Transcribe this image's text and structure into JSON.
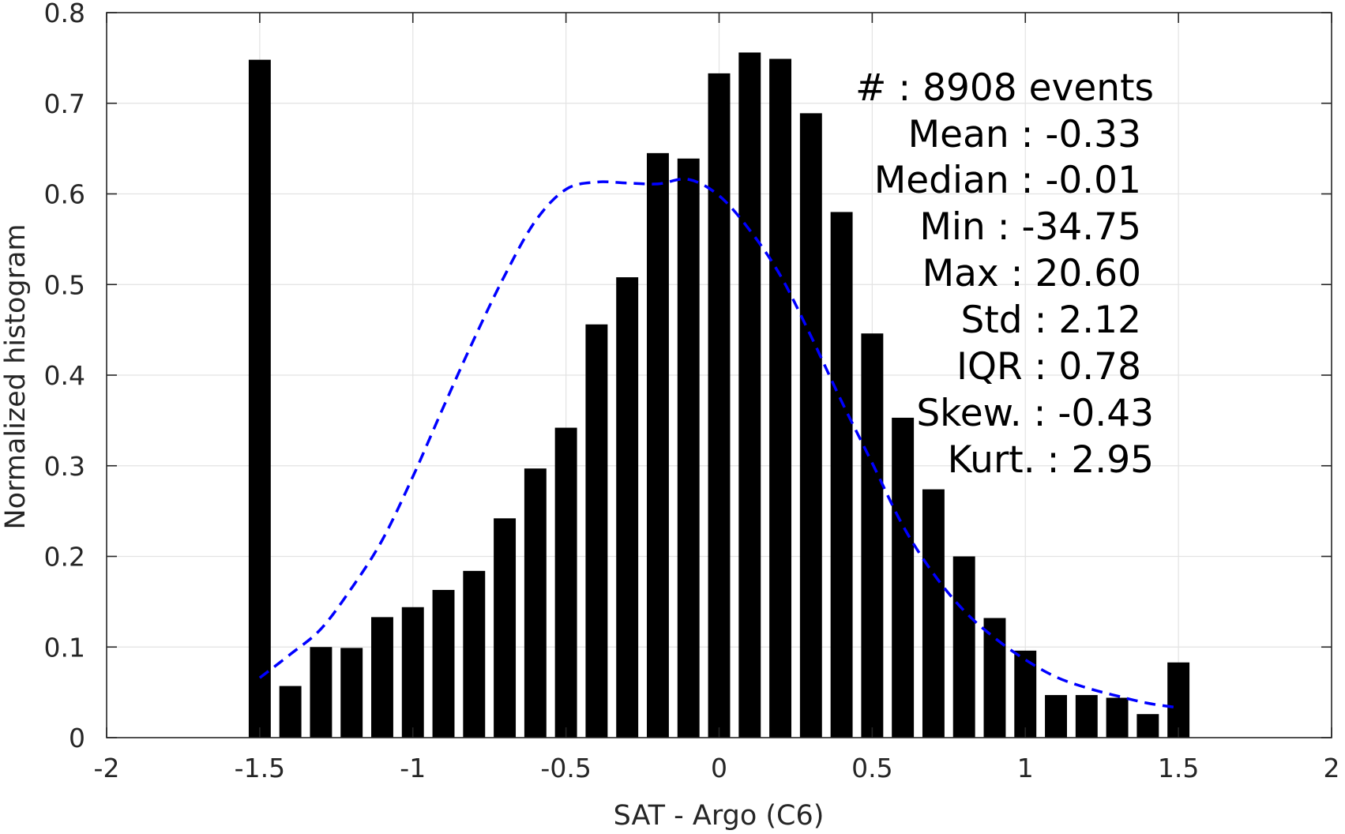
{
  "chart_data": {
    "type": "bar",
    "xlabel": "SAT - Argo (C6)",
    "ylabel": "Normalized histogram",
    "xlim": [
      -2,
      2
    ],
    "ylim": [
      0,
      0.8
    ],
    "grid": true,
    "x_ticks": [
      "-2",
      "-1.5",
      "-1",
      "-0.5",
      "0",
      "0.5",
      "1",
      "1.5",
      "2"
    ],
    "y_ticks": [
      "0",
      "0.1",
      "0.2",
      "0.3",
      "0.4",
      "0.5",
      "0.6",
      "0.7",
      "0.8"
    ],
    "bar_color": "#000000",
    "fit_color": "#0000ff",
    "bins": [
      -1.5,
      -1.4,
      -1.3,
      -1.2,
      -1.1,
      -1.0,
      -0.9,
      -0.8,
      -0.7,
      -0.6,
      -0.5,
      -0.4,
      -0.3,
      -0.2,
      -0.1,
      0.0,
      0.1,
      0.2,
      0.3,
      0.4,
      0.5,
      0.6,
      0.7,
      0.8,
      0.9,
      1.0,
      1.1,
      1.2,
      1.3,
      1.4,
      1.5
    ],
    "values": [
      0.748,
      0.057,
      0.1,
      0.099,
      0.133,
      0.144,
      0.163,
      0.184,
      0.242,
      0.297,
      0.342,
      0.456,
      0.508,
      0.645,
      0.639,
      0.733,
      0.756,
      0.749,
      0.689,
      0.58,
      0.446,
      0.353,
      0.274,
      0.2,
      0.132,
      0.096,
      0.047,
      0.047,
      0.044,
      0.026,
      0.083
    ],
    "fit_curve": {
      "style": "dashed",
      "x": [
        -1.5,
        -1.4,
        -1.3,
        -1.2,
        -1.1,
        -1.0,
        -0.9,
        -0.8,
        -0.7,
        -0.6,
        -0.5,
        -0.4,
        -0.3,
        -0.2,
        -0.1,
        0.0,
        0.1,
        0.2,
        0.3,
        0.4,
        0.5,
        0.6,
        0.7,
        0.8,
        0.9,
        1.0,
        1.1,
        1.2,
        1.3,
        1.4,
        1.5
      ],
      "y": [
        0.066,
        0.092,
        0.12,
        0.165,
        0.218,
        0.288,
        0.365,
        0.44,
        0.51,
        0.57,
        0.605,
        0.613,
        0.612,
        0.611,
        0.616,
        0.598,
        0.56,
        0.51,
        0.443,
        0.371,
        0.303,
        0.234,
        0.181,
        0.14,
        0.11,
        0.086,
        0.067,
        0.055,
        0.046,
        0.038,
        0.033
      ]
    },
    "stats": [
      "#  : 8908 events",
      "Mean : -0.33",
      "Median : -0.01",
      "Min : -34.75",
      "Max : 20.60",
      "Std : 2.12",
      "IQR : 0.78",
      "Skew. : -0.43",
      "Kurt. : 2.95"
    ]
  }
}
